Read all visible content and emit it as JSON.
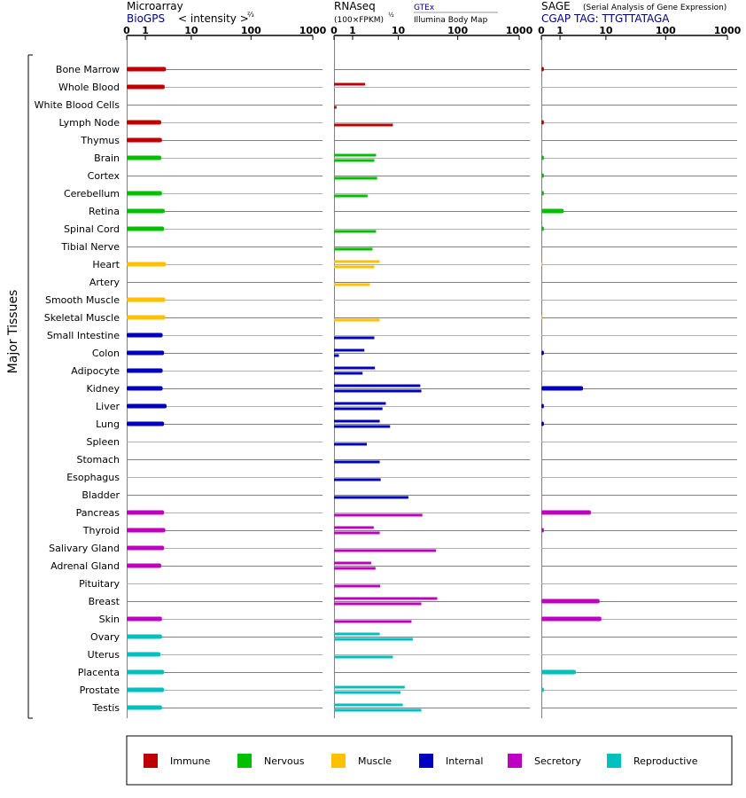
{
  "panels": [
    {
      "title": "Microarray",
      "subtitle": "BioGPS",
      "subtitle_color": "#000080",
      "scale_label": "< intensity >",
      "scale_sup": "⅔",
      "ticks": [
        "0",
        "1",
        "10",
        "100",
        "1000"
      ]
    },
    {
      "title": "RNAseq",
      "scale_label": "(100×FPKM)",
      "scale_sup": "½",
      "source_link": "GTEx",
      "source_sub": "Illumina Body Map",
      "ticks": [
        "0",
        "1",
        "10",
        "100",
        "1000"
      ]
    },
    {
      "title": "SAGE",
      "title_note": "(Serial Analysis of Gene Expression)",
      "subtitle": "CGAP TAG: TTGTTATAGA",
      "subtitle_color": "#000080",
      "ticks": [
        "0",
        "1",
        "10",
        "100",
        "1000"
      ]
    }
  ],
  "y_group_label": "Major Tissues",
  "categories": {
    "Immune": "#c00000",
    "Nervous": "#00c000",
    "Muscle": "#ffc000",
    "Internal": "#0000c0",
    "Secretory": "#c000c0",
    "Reproductive": "#00c0c0"
  },
  "legend": [
    "Immune",
    "Nervous",
    "Muscle",
    "Internal",
    "Secretory",
    "Reproductive"
  ],
  "chart_data": {
    "type": "bar",
    "tissues": [
      "Bone Marrow",
      "Whole Blood",
      "White Blood Cells",
      "Lymph Node",
      "Thymus",
      "Brain",
      "Cortex",
      "Cerebellum",
      "Retina",
      "Spinal Cord",
      "Tibial Nerve",
      "Heart",
      "Artery",
      "Smooth Muscle",
      "Skeletal Muscle",
      "Small Intestine",
      "Colon",
      "Adipocyte",
      "Kidney",
      "Liver",
      "Lung",
      "Spleen",
      "Stomach",
      "Esophagus",
      "Bladder",
      "Pancreas",
      "Thyroid",
      "Salivary Gland",
      "Adrenal Gland",
      "Pituitary",
      "Breast",
      "Skin",
      "Ovary",
      "Uterus",
      "Placenta",
      "Prostate",
      "Testis"
    ],
    "tissue_category": [
      "Immune",
      "Immune",
      "Immune",
      "Immune",
      "Immune",
      "Nervous",
      "Nervous",
      "Nervous",
      "Nervous",
      "Nervous",
      "Nervous",
      "Muscle",
      "Muscle",
      "Muscle",
      "Muscle",
      "Internal",
      "Internal",
      "Internal",
      "Internal",
      "Internal",
      "Internal",
      "Internal",
      "Internal",
      "Internal",
      "Internal",
      "Secretory",
      "Secretory",
      "Secretory",
      "Secretory",
      "Secretory",
      "Secretory",
      "Secretory",
      "Reproductive",
      "Reproductive",
      "Reproductive",
      "Reproductive",
      "Reproductive"
    ],
    "scale": "log(1+x)",
    "xlim": [
      0,
      1000
    ],
    "microarray": [
      3.3,
      3.1,
      null,
      2.6,
      2.7,
      2.6,
      null,
      2.7,
      3.1,
      3.0,
      null,
      3.3,
      null,
      3.2,
      3.2,
      2.8,
      3.0,
      2.8,
      2.8,
      3.4,
      3.0,
      null,
      null,
      null,
      null,
      3.0,
      3.2,
      3.0,
      2.6,
      null,
      null,
      2.7,
      2.7,
      2.5,
      3.0,
      3.0,
      2.7
    ],
    "rnaseq_gtex": [
      null,
      2.2,
      null,
      null,
      null,
      3.8,
      null,
      null,
      null,
      null,
      null,
      null,
      null,
      null,
      null,
      null,
      null,
      null,
      null,
      null,
      null,
      null,
      null,
      null,
      null,
      null,
      null,
      null,
      null,
      null,
      null,
      null,
      null,
      null,
      null,
      null,
      null
    ],
    "rnaseq_bodymap": [
      null,
      null,
      0.1,
      8.0,
      null,
      3.8,
      4.0,
      2.5,
      null,
      3.8,
      3.2,
      4.5,
      2.8,
      null,
      4.5,
      3.5,
      2.1,
      3.6,
      24,
      5.9,
      4.5,
      2.4,
      4.5,
      4.7,
      15,
      26,
      3.4,
      44,
      3.0,
      4.6,
      46,
      17,
      4.5,
      8.0,
      null,
      13,
      12
    ],
    "rnaseq_bodymap_b": [
      null,
      null,
      null,
      null,
      null,
      3.5,
      null,
      null,
      null,
      null,
      null,
      3.5,
      null,
      null,
      null,
      null,
      0.2,
      1.9,
      25,
      5.1,
      7.1,
      null,
      null,
      null,
      null,
      null,
      4.5,
      null,
      3.7,
      null,
      25,
      null,
      18,
      null,
      null,
      11,
      25
    ],
    "sage": [
      0.1,
      null,
      null,
      0.1,
      null,
      0.1,
      0.1,
      0.1,
      1.3,
      0.1,
      null,
      0.05,
      null,
      null,
      0.05,
      null,
      0.1,
      null,
      3.7,
      0.1,
      0.1,
      null,
      null,
      null,
      null,
      5.3,
      0.1,
      null,
      null,
      null,
      7.7,
      8.3,
      null,
      null,
      2.6,
      0.1,
      null
    ]
  }
}
